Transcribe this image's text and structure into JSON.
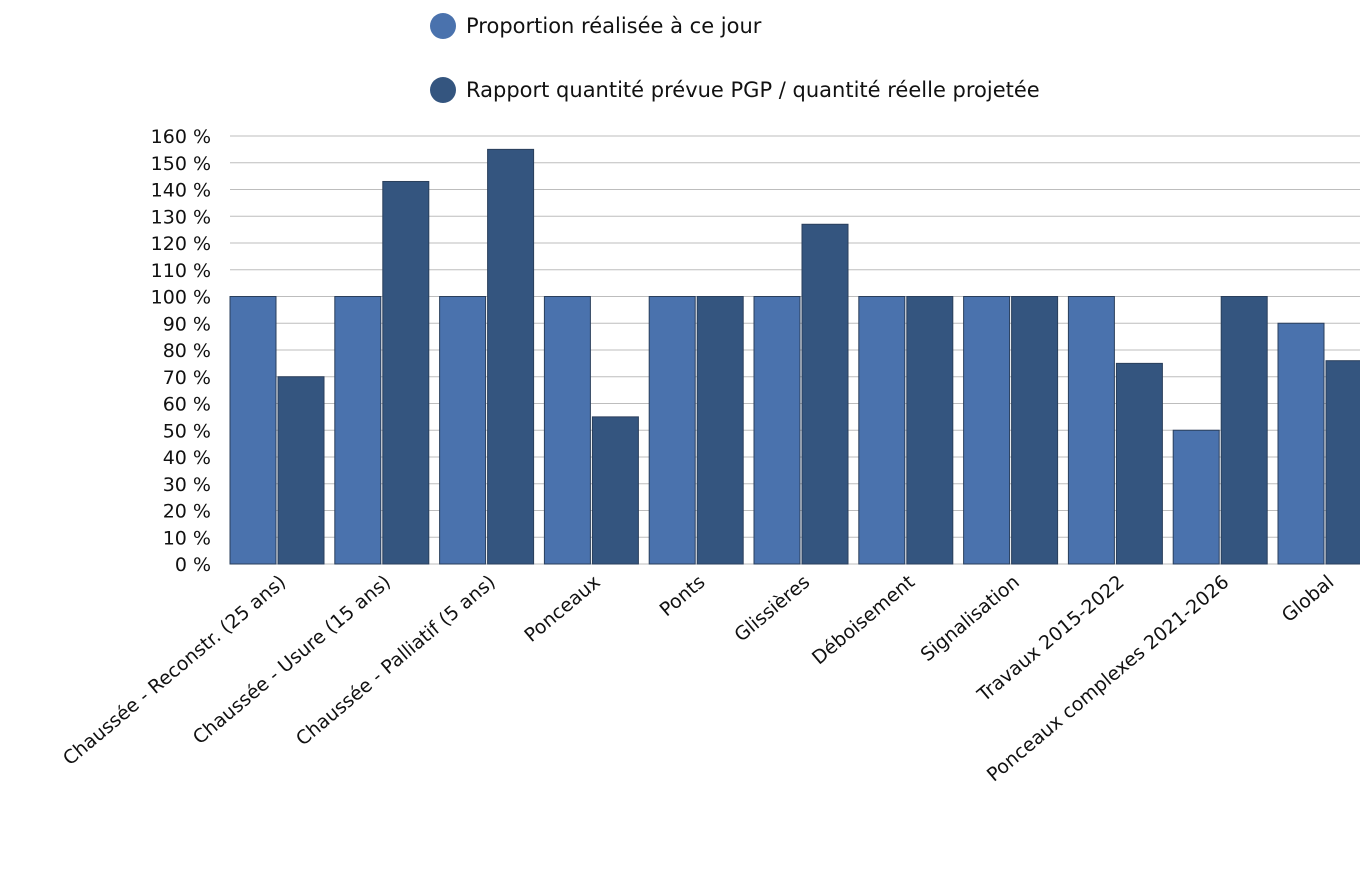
{
  "chart_data": {
    "type": "bar",
    "categories": [
      "Chaussée - Reconstr. (25 ans)",
      "Chaussée - Usure (15 ans)",
      "Chaussée - Palliatif (5 ans)",
      "Ponceaux",
      "Ponts",
      "Glissières",
      "Déboisement",
      "Signalisation",
      "Travaux 2015-2022",
      "Ponceaux complexes 2021-2026",
      "Global"
    ],
    "series": [
      {
        "name": "Proportion réalisée à ce jour",
        "color": "#4a72ad",
        "values": [
          100,
          100,
          100,
          100,
          100,
          100,
          100,
          100,
          100,
          50,
          90
        ]
      },
      {
        "name": "Rapport quantité prévue PGP / quantité réelle projetée",
        "color": "#34557f",
        "values": [
          70,
          143,
          155,
          55,
          100,
          127,
          100,
          100,
          75,
          100,
          76
        ]
      }
    ],
    "y_ticks": [
      "0 %",
      "10 %",
      "20 %",
      "30 %",
      "40 %",
      "50 %",
      "60 %",
      "70 %",
      "80 %",
      "90 %",
      "100 %",
      "110 %",
      "120 %",
      "130 %",
      "140 %",
      "150 %",
      "160 %"
    ],
    "ylim": [
      0,
      160
    ],
    "grid": true,
    "legend_position": "top"
  }
}
